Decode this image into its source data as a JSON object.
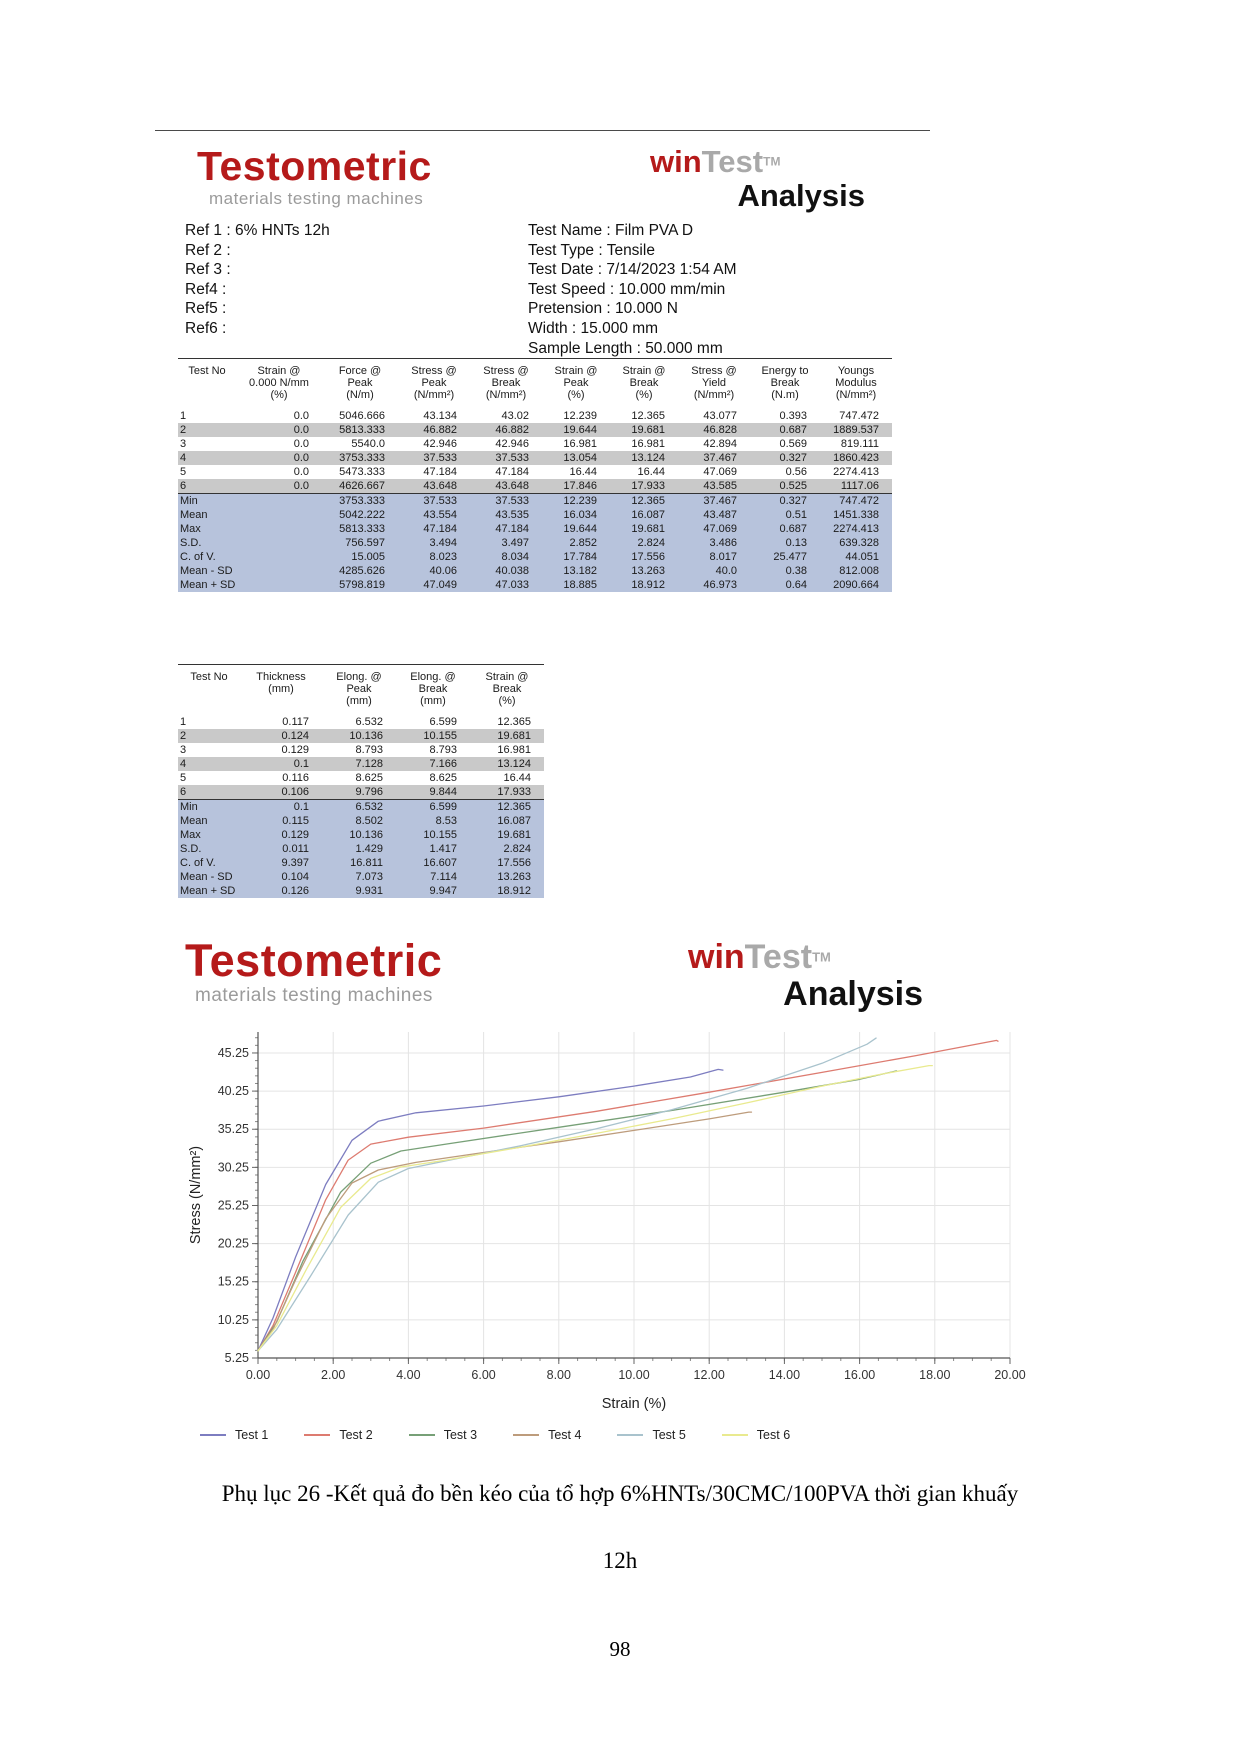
{
  "colors": {
    "brand_red": "#b51a1a",
    "subtitle_gray": "#9b9b9b",
    "row_shade": "#c9c9c9",
    "stat_blue": "#b7c3dc"
  },
  "branding": {
    "logo_text": "Testometric",
    "logo_subtitle": "materials testing machines",
    "win": "win",
    "test": "Test",
    "tm": "TM",
    "analysis": "Analysis"
  },
  "refs": {
    "lines": [
      "Ref 1 : 6% HNTs 12h",
      "Ref 2 :",
      "Ref 3 :",
      "Ref4 :",
      "Ref5 :",
      "Ref6 :"
    ]
  },
  "test_info": {
    "lines": [
      "Test Name : Film PVA D",
      "Test Type : Tensile",
      "Test Date : 7/14/2023 1:54 AM",
      "Test Speed : 10.000 mm/min",
      "Pretension : 10.000 N",
      "Width : 15.000 mm",
      "Sample Length : 50.000 mm"
    ]
  },
  "table1": {
    "headers": [
      "Test No",
      "Strain @\n0.000 N/mm\n(%)",
      "Force @\nPeak\n(N/m)",
      "Stress @\nPeak\n(N/mm²)",
      "Stress @\nBreak\n(N/mm²)",
      "Strain @\nPeak\n(%)",
      "Strain @\nBreak\n(%)",
      "Stress @\nYield\n(N/mm²)",
      "Energy to\nBreak\n(N.m)",
      "Youngs\nModulus\n(N/mm²)"
    ],
    "rows": [
      [
        "1",
        "0.0",
        "5046.666",
        "43.134",
        "43.02",
        "12.239",
        "12.365",
        "43.077",
        "0.393",
        "747.472"
      ],
      [
        "2",
        "0.0",
        "5813.333",
        "46.882",
        "46.882",
        "19.644",
        "19.681",
        "46.828",
        "0.687",
        "1889.537"
      ],
      [
        "3",
        "0.0",
        "5540.0",
        "42.946",
        "42.946",
        "16.981",
        "16.981",
        "42.894",
        "0.569",
        "819.111"
      ],
      [
        "4",
        "0.0",
        "3753.333",
        "37.533",
        "37.533",
        "13.054",
        "13.124",
        "37.467",
        "0.327",
        "1860.423"
      ],
      [
        "5",
        "0.0",
        "5473.333",
        "47.184",
        "47.184",
        "16.44",
        "16.44",
        "47.069",
        "0.56",
        "2274.413"
      ],
      [
        "6",
        "0.0",
        "4626.667",
        "43.648",
        "43.648",
        "17.846",
        "17.933",
        "43.585",
        "0.525",
        "1117.06"
      ]
    ],
    "stats": [
      [
        "Min",
        "",
        "3753.333",
        "37.533",
        "37.533",
        "12.239",
        "12.365",
        "37.467",
        "0.327",
        "747.472"
      ],
      [
        "Mean",
        "",
        "5042.222",
        "43.554",
        "43.535",
        "16.034",
        "16.087",
        "43.487",
        "0.51",
        "1451.338"
      ],
      [
        "Max",
        "",
        "5813.333",
        "47.184",
        "47.184",
        "19.644",
        "19.681",
        "47.069",
        "0.687",
        "2274.413"
      ],
      [
        "S.D.",
        "",
        "756.597",
        "3.494",
        "3.497",
        "2.852",
        "2.824",
        "3.486",
        "0.13",
        "639.328"
      ],
      [
        "C. of V.",
        "",
        "15.005",
        "8.023",
        "8.034",
        "17.784",
        "17.556",
        "8.017",
        "25.477",
        "44.051"
      ],
      [
        "Mean - SD",
        "",
        "4285.626",
        "40.06",
        "40.038",
        "13.182",
        "13.263",
        "40.0",
        "0.38",
        "812.008"
      ],
      [
        "Mean + SD",
        "",
        "5798.819",
        "47.049",
        "47.033",
        "18.885",
        "18.912",
        "46.973",
        "0.64",
        "2090.664"
      ]
    ]
  },
  "table2": {
    "headers": [
      "Test No",
      "Thickness\n(mm)",
      "Elong. @\nPeak\n(mm)",
      "Elong. @\nBreak\n(mm)",
      "Strain @\nBreak\n(%)"
    ],
    "rows": [
      [
        "1",
        "0.117",
        "6.532",
        "6.599",
        "12.365"
      ],
      [
        "2",
        "0.124",
        "10.136",
        "10.155",
        "19.681"
      ],
      [
        "3",
        "0.129",
        "8.793",
        "8.793",
        "16.981"
      ],
      [
        "4",
        "0.1",
        "7.128",
        "7.166",
        "13.124"
      ],
      [
        "5",
        "0.116",
        "8.625",
        "8.625",
        "16.44"
      ],
      [
        "6",
        "0.106",
        "9.796",
        "9.844",
        "17.933"
      ]
    ],
    "stats": [
      [
        "Min",
        "0.1",
        "6.532",
        "6.599",
        "12.365"
      ],
      [
        "Mean",
        "0.115",
        "8.502",
        "8.53",
        "16.087"
      ],
      [
        "Max",
        "0.129",
        "10.136",
        "10.155",
        "19.681"
      ],
      [
        "S.D.",
        "0.011",
        "1.429",
        "1.417",
        "2.824"
      ],
      [
        "C. of V.",
        "9.397",
        "16.811",
        "16.607",
        "17.556"
      ],
      [
        "Mean - SD",
        "0.104",
        "7.073",
        "7.114",
        "13.263"
      ],
      [
        "Mean + SD",
        "0.126",
        "9.931",
        "9.947",
        "18.912"
      ]
    ]
  },
  "chart_data": {
    "type": "line",
    "title": "",
    "xlabel": "Strain (%)",
    "ylabel": "Stress (N/mm²)",
    "xlim": [
      0,
      20
    ],
    "ylim": [
      5.25,
      48.0
    ],
    "x_tick_step": 2,
    "x_minor_step": 0.5,
    "y_tick_start": 5.25,
    "y_tick_step": 5,
    "y_minor_step": 1,
    "grid": true,
    "legend_position": "bottom",
    "series": [
      {
        "name": "Test 1",
        "color": "#7d7dc0",
        "points": [
          [
            0,
            6.2
          ],
          [
            0.4,
            10.5
          ],
          [
            1.0,
            18.5
          ],
          [
            1.8,
            28.0
          ],
          [
            2.5,
            33.8
          ],
          [
            3.2,
            36.3
          ],
          [
            4.2,
            37.4
          ],
          [
            6,
            38.3
          ],
          [
            8,
            39.5
          ],
          [
            10,
            40.9
          ],
          [
            11.5,
            42.1
          ],
          [
            12.239,
            43.1
          ],
          [
            12.365,
            43.0
          ]
        ]
      },
      {
        "name": "Test 2",
        "color": "#dd7b70",
        "points": [
          [
            0,
            6.2
          ],
          [
            0.4,
            9.5
          ],
          [
            1.0,
            16.5
          ],
          [
            1.8,
            26.0
          ],
          [
            2.4,
            31.2
          ],
          [
            3.0,
            33.3
          ],
          [
            4,
            34.2
          ],
          [
            6,
            35.4
          ],
          [
            9,
            37.6
          ],
          [
            12,
            40.1
          ],
          [
            15,
            42.7
          ],
          [
            17.5,
            44.9
          ],
          [
            19.644,
            46.9
          ],
          [
            19.681,
            46.8
          ]
        ]
      },
      {
        "name": "Test 3",
        "color": "#77a077",
        "points": [
          [
            0,
            6.2
          ],
          [
            0.5,
            10.0
          ],
          [
            1.2,
            18.0
          ],
          [
            2.2,
            27.0
          ],
          [
            3.0,
            30.8
          ],
          [
            3.8,
            32.4
          ],
          [
            5,
            33.3
          ],
          [
            8,
            35.5
          ],
          [
            11,
            37.7
          ],
          [
            14,
            40.1
          ],
          [
            16,
            41.8
          ],
          [
            16.981,
            42.9
          ]
        ]
      },
      {
        "name": "Test 4",
        "color": "#bd9c7c",
        "points": [
          [
            0,
            6.2
          ],
          [
            0.4,
            9.0
          ],
          [
            1.0,
            15.5
          ],
          [
            1.8,
            23.5
          ],
          [
            2.5,
            28.2
          ],
          [
            3.2,
            29.9
          ],
          [
            4.2,
            30.9
          ],
          [
            6,
            32.2
          ],
          [
            8,
            33.6
          ],
          [
            10,
            35.1
          ],
          [
            12,
            36.6
          ],
          [
            13.054,
            37.5
          ],
          [
            13.124,
            37.5
          ]
        ]
      },
      {
        "name": "Test 5",
        "color": "#a9c3cd",
        "points": [
          [
            0,
            6.2
          ],
          [
            0.5,
            9.0
          ],
          [
            1.4,
            16.0
          ],
          [
            2.4,
            24.0
          ],
          [
            3.2,
            28.3
          ],
          [
            4,
            30.1
          ],
          [
            5,
            31.1
          ],
          [
            7,
            33.1
          ],
          [
            9,
            35.3
          ],
          [
            11,
            37.8
          ],
          [
            13,
            40.6
          ],
          [
            15,
            43.9
          ],
          [
            16.2,
            46.4
          ],
          [
            16.44,
            47.2
          ]
        ]
      },
      {
        "name": "Test 6",
        "color": "#e9ea8f",
        "points": [
          [
            0,
            6.2
          ],
          [
            0.5,
            9.5
          ],
          [
            1.3,
            17.0
          ],
          [
            2.2,
            25.0
          ],
          [
            3.0,
            28.8
          ],
          [
            3.8,
            30.3
          ],
          [
            5,
            31.2
          ],
          [
            7,
            32.9
          ],
          [
            9,
            34.7
          ],
          [
            11,
            36.6
          ],
          [
            13,
            38.7
          ],
          [
            15,
            40.9
          ],
          [
            16.5,
            42.4
          ],
          [
            17.846,
            43.6
          ],
          [
            17.933,
            43.6
          ]
        ]
      }
    ]
  },
  "caption": {
    "line1": "Phụ lục 26 -Kết quả đo bền kéo của tổ hợp 6%HNTs/30CMC/100PVA thời gian khuấy",
    "line2": "12h"
  },
  "page": {
    "number": "98"
  }
}
